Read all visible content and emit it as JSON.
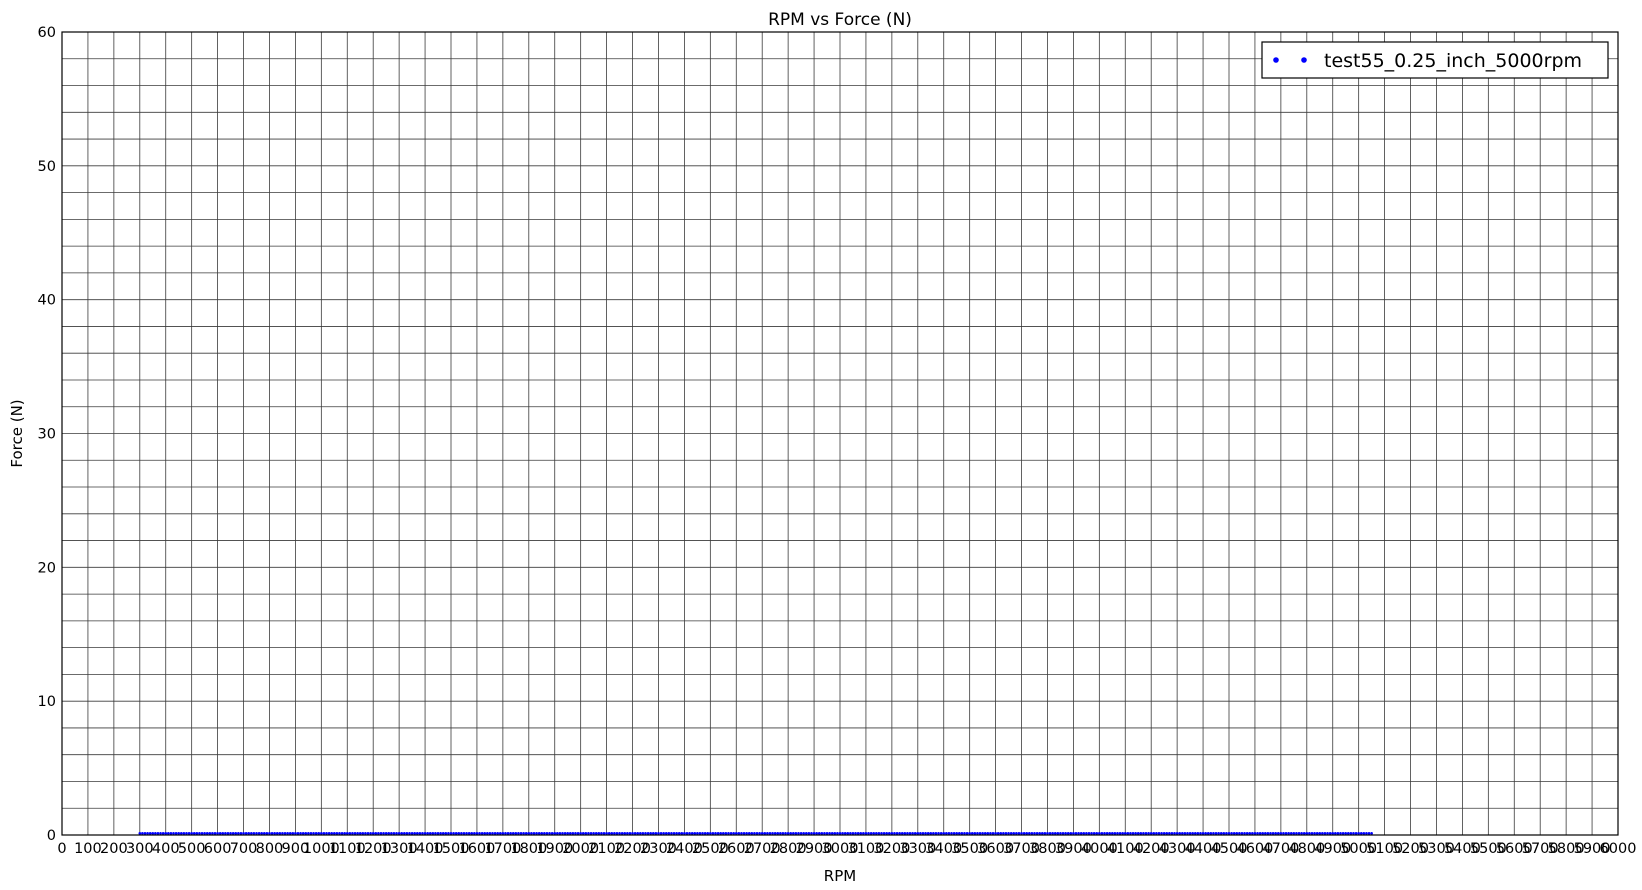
{
  "chart_data": {
    "type": "scatter",
    "title": "RPM vs Force (N)",
    "xlabel": "RPM",
    "ylabel": "Force (N)",
    "xlim": [
      0,
      6000
    ],
    "ylim": [
      0,
      60
    ],
    "x_major_step": 100,
    "y_major_step": 10,
    "y_minor_step": 2,
    "grid": true,
    "legend_position": "top-right",
    "series": [
      {
        "name": "test55_0.25_inch_5000rpm",
        "color": "#0000ff",
        "marker": "dot",
        "x_start": 300,
        "x_end": 5050,
        "x_step": 10,
        "y": 0.05
      }
    ]
  }
}
